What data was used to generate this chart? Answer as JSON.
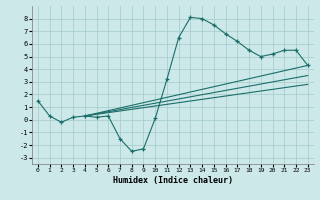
{
  "xlabel": "Humidex (Indice chaleur)",
  "background_color": "#cce8e8",
  "grid_color": "#aacece",
  "line_color": "#1a6e6a",
  "xlim": [
    -0.5,
    23.5
  ],
  "ylim": [
    -3.5,
    9.0
  ],
  "xticks": [
    0,
    1,
    2,
    3,
    4,
    5,
    6,
    7,
    8,
    9,
    10,
    11,
    12,
    13,
    14,
    15,
    16,
    17,
    18,
    19,
    20,
    21,
    22,
    23
  ],
  "yticks": [
    -3,
    -2,
    -1,
    0,
    1,
    2,
    3,
    4,
    5,
    6,
    7,
    8
  ],
  "main_series": {
    "x": [
      0,
      1,
      2,
      3,
      4,
      5,
      6,
      7,
      8,
      9,
      10,
      11,
      12,
      13,
      14,
      15,
      16,
      17,
      18,
      19,
      20,
      21,
      22,
      23
    ],
    "y": [
      1.5,
      0.3,
      -0.2,
      0.2,
      0.3,
      0.2,
      0.3,
      -1.5,
      -2.5,
      -2.3,
      0.1,
      3.2,
      6.5,
      8.1,
      8.0,
      7.5,
      6.8,
      6.2,
      5.5,
      5.0,
      5.2,
      5.5,
      5.5,
      4.3
    ]
  },
  "trend_lines": [
    {
      "x": [
        4,
        23
      ],
      "y": [
        0.3,
        4.3
      ]
    },
    {
      "x": [
        4,
        23
      ],
      "y": [
        0.3,
        3.5
      ]
    },
    {
      "x": [
        4,
        23
      ],
      "y": [
        0.3,
        2.8
      ]
    }
  ]
}
